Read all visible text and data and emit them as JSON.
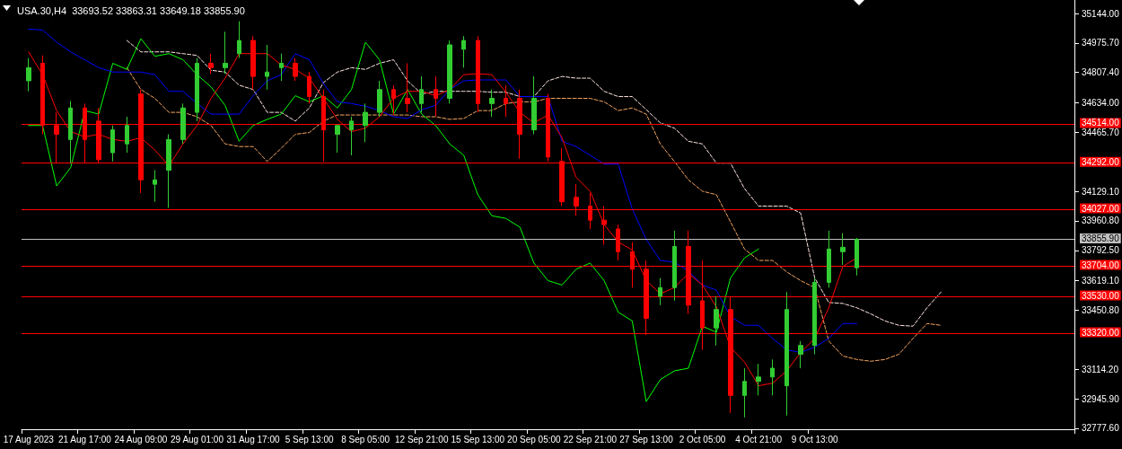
{
  "chart_data": {
    "type": "candlestick",
    "title": "USA.30,H4  33693.52 33863.31 33649.18 33855.90",
    "categories": [
      "17 Aug 2023",
      null,
      null,
      null,
      "21 Aug 17:00",
      null,
      null,
      null,
      "24 Aug 09:00",
      null,
      null,
      null,
      "29 Aug 01:00",
      null,
      null,
      null,
      "31 Aug 17:00",
      null,
      null,
      null,
      "5 Sep 13:00",
      null,
      null,
      null,
      "8 Sep 05:00",
      null,
      null,
      null,
      "12 Sep 21:00",
      null,
      null,
      null,
      "15 Sep 13:00",
      null,
      null,
      null,
      "20 Sep 05:00",
      null,
      null,
      null,
      "22 Sep 21:00",
      null,
      null,
      null,
      "27 Sep 13:00",
      null,
      null,
      null,
      "2 Oct 05:00",
      null,
      null,
      null,
      "4 Oct 21:00",
      null,
      null,
      null,
      "9 Oct 13:00",
      null,
      null,
      null,
      null,
      null,
      null,
      null,
      null,
      null,
      null,
      null,
      null,
      null,
      null,
      null,
      null,
      null,
      null
    ],
    "colors": [
      "#32cd32",
      "#ff0000",
      "#ff0000",
      "#32cd32",
      "#ff0000",
      "#ff0000",
      "#32cd32",
      "#32cd32",
      "#ff0000",
      "#32cd32",
      "#32cd32",
      "#32cd32",
      "#32cd32",
      "#ff0000",
      "#32cd32",
      "#32cd32",
      "#ff0000",
      "#32cd32",
      "#32cd32",
      "#ff0000",
      "#ff0000",
      "#ff0000",
      "#32cd32",
      "#32cd32",
      "#32cd32",
      "#32cd32",
      "#ff0000",
      "#ff0000",
      "#32cd32",
      "#ff0000",
      "#32cd32",
      "#32cd32",
      "#ff0000",
      "#32cd32",
      "#ff0000",
      "#ff0000",
      "#32cd32",
      "#ff0000",
      "#ff0000",
      "#ff0000",
      "#ff0000",
      "#ff0000",
      "#ff0000",
      "#ff0000",
      "#ff0000",
      "#32cd32",
      "#32cd32",
      "#ff0000",
      "#ff0000",
      "#32cd32",
      "#ff0000",
      "#32cd32",
      "#32cd32",
      "#32cd32",
      "#32cd32",
      "#32cd32",
      "#32cd32",
      "#32cd32",
      "#32cd32",
      "#32cd32",
      null,
      null,
      null,
      null,
      null,
      null,
      null,
      null,
      null,
      null,
      null,
      null,
      null,
      null,
      null
    ],
    "ohlc": [
      [
        34760,
        34890,
        34700,
        34835
      ],
      [
        34860,
        34905,
        34455,
        34505
      ],
      [
        34505,
        34580,
        34290,
        34455
      ],
      [
        34425,
        34645,
        34290,
        34605
      ],
      [
        34605,
        34630,
        34290,
        34425
      ],
      [
        34530,
        34605,
        34290,
        34310
      ],
      [
        34350,
        34505,
        34300,
        34480
      ],
      [
        34400,
        34555,
        34350,
        34505
      ],
      [
        34685,
        34710,
        34120,
        34195
      ],
      [
        34170,
        34250,
        34070,
        34195
      ],
      [
        34250,
        34455,
        34035,
        34425
      ],
      [
        34425,
        34630,
        34400,
        34605
      ],
      [
        34580,
        34890,
        34530,
        34860
      ],
      [
        34860,
        34915,
        34800,
        34835
      ],
      [
        34835,
        35040,
        34800,
        34860
      ],
      [
        34915,
        35100,
        34890,
        34990
      ],
      [
        34990,
        35015,
        34710,
        34785
      ],
      [
        34785,
        34965,
        34710,
        34810
      ],
      [
        34835,
        34915,
        34760,
        34860
      ],
      [
        34860,
        34890,
        34760,
        34785
      ],
      [
        34785,
        34810,
        34630,
        34670
      ],
      [
        34670,
        34710,
        34300,
        34480
      ],
      [
        34455,
        34505,
        34350,
        34505
      ],
      [
        34480,
        34555,
        34335,
        34530
      ],
      [
        34505,
        34630,
        34410,
        34580
      ],
      [
        34580,
        34760,
        34555,
        34710
      ],
      [
        34710,
        34735,
        34565,
        34660
      ],
      [
        34660,
        34860,
        34580,
        34630
      ],
      [
        34630,
        34785,
        34580,
        34710
      ],
      [
        34710,
        34785,
        34555,
        34660
      ],
      [
        34660,
        34990,
        34630,
        34965
      ],
      [
        34940,
        35015,
        34835,
        34990
      ],
      [
        34990,
        35015,
        34580,
        34630
      ],
      [
        34630,
        34710,
        34555,
        34660
      ],
      [
        34660,
        34735,
        34555,
        34630
      ],
      [
        34660,
        34710,
        34315,
        34455
      ],
      [
        34480,
        34785,
        34455,
        34660
      ],
      [
        34660,
        34685,
        34300,
        34325
      ],
      [
        34300,
        34375,
        34045,
        34070
      ],
      [
        34095,
        34170,
        33990,
        34045
      ],
      [
        34045,
        34120,
        33915,
        33965
      ],
      [
        33965,
        34045,
        33825,
        33940
      ],
      [
        33915,
        33940,
        33735,
        33785
      ],
      [
        33785,
        33840,
        33580,
        33685
      ],
      [
        33685,
        33735,
        33310,
        33405
      ],
      [
        33530,
        33635,
        33480,
        33580
      ],
      [
        33580,
        33905,
        33505,
        33815
      ],
      [
        33815,
        33905,
        33430,
        33480
      ],
      [
        33505,
        33735,
        33225,
        33350
      ],
      [
        33350,
        33530,
        33250,
        33455
      ],
      [
        33455,
        33530,
        32865,
        32965
      ],
      [
        32965,
        33120,
        32840,
        33045
      ],
      [
        33045,
        33145,
        32965,
        33070
      ],
      [
        33070,
        33170,
        32965,
        33120
      ],
      [
        33020,
        33555,
        32850,
        33455
      ],
      [
        33200,
        33275,
        33120,
        33250
      ],
      [
        33250,
        33635,
        33200,
        33610
      ],
      [
        33610,
        33905,
        33580,
        33800
      ],
      [
        33785,
        33890,
        33710,
        33810
      ],
      [
        33693.52,
        33863.31,
        33649.18,
        33855.9
      ],
      null,
      null,
      null,
      null,
      null,
      null,
      null,
      null,
      null,
      null,
      null,
      null,
      null,
      null,
      null
    ],
    "series": [
      {
        "type": "line",
        "color": "#ffe4e1",
        "line_style": "dashed",
        "values": [
          null,
          null,
          null,
          null,
          null,
          null,
          null,
          34990,
          34925,
          34925,
          34925,
          34915,
          34905,
          34820,
          34810,
          34735,
          34710,
          34580,
          34580,
          34530,
          34605,
          34750,
          34810,
          34835,
          34825,
          34860,
          34880,
          34760,
          34685,
          34700,
          34700,
          34700,
          34700,
          34695,
          34695,
          34670,
          34670,
          34760,
          34785,
          34775,
          34775,
          34700,
          34670,
          34670,
          34595,
          34520,
          34490,
          34415,
          34400,
          34290,
          34290,
          34145,
          34045,
          34045,
          34045,
          34005,
          33635,
          33495,
          33490,
          33465,
          33430,
          33390,
          33365,
          33360,
          33465,
          33555,
          null,
          null,
          null,
          null,
          null,
          null,
          null,
          null,
          null
        ]
      },
      {
        "type": "line",
        "color": "#f4a460",
        "line_style": "dashed",
        "values": [
          null,
          null,
          null,
          null,
          null,
          null,
          null,
          34835,
          34710,
          34660,
          34580,
          34580,
          34555,
          34505,
          34400,
          34385,
          34385,
          34300,
          34375,
          34455,
          34465,
          34530,
          34565,
          34565,
          34565,
          34565,
          34565,
          34565,
          34555,
          34555,
          34540,
          34545,
          34590,
          34590,
          34630,
          34640,
          34640,
          34660,
          34660,
          34660,
          34660,
          34640,
          34590,
          34605,
          34570,
          34400,
          34300,
          34195,
          34130,
          34110,
          33955,
          33800,
          33735,
          33735,
          33670,
          33620,
          33580,
          33275,
          33190,
          33170,
          33160,
          33170,
          33200,
          33290,
          33375,
          33365,
          null,
          null,
          null,
          null,
          null,
          null,
          null,
          null,
          null
        ]
      },
      {
        "type": "line",
        "color": "#00ff00",
        "line_style": "solid",
        "values": [
          34505,
          34505,
          34160,
          34265,
          34590,
          34570,
          34860,
          34825,
          35000,
          34900,
          34915,
          34880,
          34795,
          34725,
          34620,
          34415,
          34505,
          34540,
          34570,
          34675,
          34640,
          34675,
          34605,
          34710,
          34980,
          34880,
          34570,
          34710,
          34570,
          34505,
          34400,
          34335,
          34110,
          33990,
          33975,
          33925,
          33720,
          33620,
          33595,
          33685,
          33720,
          33620,
          33440,
          33390,
          32930,
          33055,
          33105,
          33120,
          33360,
          33325,
          33635,
          33750,
          33800,
          null,
          null,
          null,
          null,
          null,
          null,
          null,
          null,
          null,
          null,
          null,
          null,
          null,
          null,
          null,
          null,
          null,
          null,
          null,
          null,
          null,
          null
        ]
      },
      {
        "type": "line",
        "color": "#0000ff",
        "line_style": "solid",
        "values": [
          35055,
          35050,
          34980,
          34925,
          34880,
          34835,
          34810,
          34810,
          34810,
          34795,
          34700,
          34700,
          34630,
          34570,
          34570,
          34570,
          34675,
          34760,
          34795,
          34915,
          34880,
          34745,
          34640,
          34630,
          34615,
          34590,
          34555,
          34545,
          34595,
          34620,
          34710,
          34760,
          34765,
          34765,
          34765,
          34670,
          34670,
          34670,
          34415,
          34385,
          34335,
          34285,
          34285,
          34030,
          33855,
          33735,
          33725,
          33675,
          33595,
          33565,
          33415,
          33365,
          33365,
          33290,
          33225,
          33210,
          33240,
          33290,
          33375,
          33375,
          null,
          null,
          null,
          null,
          null,
          null,
          null,
          null,
          null,
          null,
          null,
          null,
          null,
          null,
          null
        ]
      },
      {
        "type": "line",
        "color": "#ff0000",
        "line_style": "solid",
        "values": [
          34925,
          34795,
          34590,
          34470,
          34440,
          34455,
          34425,
          34415,
          34435,
          34365,
          34275,
          34400,
          34505,
          34660,
          34775,
          34915,
          34915,
          34915,
          34850,
          34825,
          34775,
          34660,
          34540,
          34470,
          34490,
          34555,
          34660,
          34700,
          34700,
          34675,
          34710,
          34795,
          34800,
          34795,
          34695,
          34580,
          34520,
          34565,
          34435,
          34210,
          34130,
          33940,
          33840,
          33795,
          33620,
          33545,
          33580,
          33660,
          33595,
          33470,
          33240,
          33155,
          33020,
          33035,
          33105,
          33210,
          33290,
          33465,
          33700,
          33750,
          null,
          null,
          null,
          null,
          null,
          null,
          null,
          null,
          null,
          null,
          null,
          null,
          null,
          null,
          null
        ]
      }
    ],
    "marker": "none",
    "ylim": [
      32772,
      35221
    ],
    "yticks": [
      {
        "value": 32777.6,
        "label": "32777.60"
      },
      {
        "value": 32945.9,
        "label": "32945.90"
      },
      {
        "value": 33114.2,
        "label": "33114.20"
      },
      {
        "value": 33450.8,
        "label": "33450.80"
      },
      {
        "value": 33619.1,
        "label": "33619.10"
      },
      {
        "value": 33792.5,
        "label": "33792.50"
      },
      {
        "value": 33960.8,
        "label": "33960.80"
      },
      {
        "value": 34129.1,
        "label": "34129.10"
      },
      {
        "value": 34465.7,
        "label": "34465.70"
      },
      {
        "value": 34634,
        "label": "34634.00"
      },
      {
        "value": 34807.4,
        "label": "34807.40"
      },
      {
        "value": 34975.7,
        "label": "34975.70"
      },
      {
        "value": 35144,
        "label": "35144.00"
      }
    ],
    "ref_lines": [
      {
        "axis": "y",
        "value": 34514,
        "label": "34514.00",
        "color": "#ff0000"
      },
      {
        "axis": "y",
        "value": 34292,
        "label": "34292.00",
        "color": "#ff0000"
      },
      {
        "axis": "y",
        "value": 34027,
        "label": "34027.00",
        "color": "#ff0000"
      },
      {
        "axis": "y",
        "value": 33855.9,
        "label": "33855.90",
        "color": "#c0c0c0"
      },
      {
        "axis": "y",
        "value": 33704,
        "label": "33704.00",
        "color": "#ff0000"
      },
      {
        "axis": "y",
        "value": 33530,
        "label": "33530.00",
        "color": "#ff0000"
      },
      {
        "axis": "y",
        "value": 33320,
        "label": "33320.00",
        "color": "#ff0000"
      }
    ]
  }
}
